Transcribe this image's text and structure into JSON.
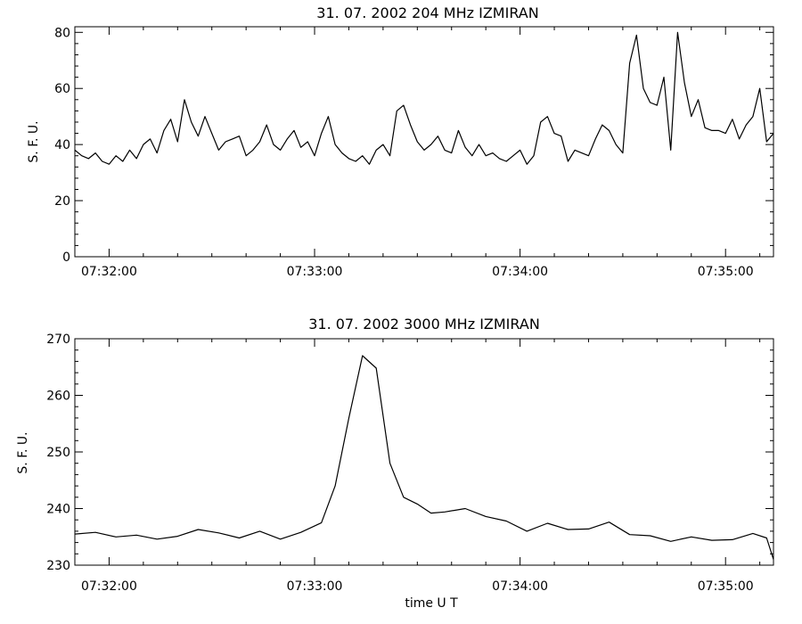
{
  "chart_data": [
    {
      "type": "line",
      "title": "31.  07.  2002    204 MHz     IZMIRAN",
      "xlabel": "",
      "ylabel": "S. F. U.",
      "xlim": [
        "07:31:50",
        "07:35:14"
      ],
      "ylim": [
        0,
        82
      ],
      "yticks": [
        0,
        20,
        40,
        60,
        80
      ],
      "xticks": [
        "07:32:00",
        "07:33:00",
        "07:34:00",
        "07:35:00"
      ],
      "series": [
        {
          "x": [
            "07:31:50",
            "07:31:52",
            "07:31:54",
            "07:31:56",
            "07:31:58",
            "07:32:00",
            "07:32:02",
            "07:32:04",
            "07:32:06",
            "07:32:08",
            "07:32:10",
            "07:32:12",
            "07:32:14",
            "07:32:16",
            "07:32:18",
            "07:32:20",
            "07:32:22",
            "07:32:24",
            "07:32:26",
            "07:32:28",
            "07:32:30",
            "07:32:32",
            "07:32:34",
            "07:32:36",
            "07:32:38",
            "07:32:40",
            "07:32:42",
            "07:32:44",
            "07:32:46",
            "07:32:48",
            "07:32:50",
            "07:32:52",
            "07:32:54",
            "07:32:56",
            "07:32:58",
            "07:33:00",
            "07:33:02",
            "07:33:04",
            "07:33:06",
            "07:33:08",
            "07:33:10",
            "07:33:12",
            "07:33:14",
            "07:33:16",
            "07:33:18",
            "07:33:20",
            "07:33:22",
            "07:33:24",
            "07:33:26",
            "07:33:28",
            "07:33:30",
            "07:33:32",
            "07:33:34",
            "07:33:36",
            "07:33:38",
            "07:33:40",
            "07:33:42",
            "07:33:44",
            "07:33:46",
            "07:33:48",
            "07:33:50",
            "07:33:52",
            "07:33:54",
            "07:33:56",
            "07:33:58",
            "07:34:00",
            "07:34:02",
            "07:34:04",
            "07:34:06",
            "07:34:08",
            "07:34:10",
            "07:34:12",
            "07:34:14",
            "07:34:16",
            "07:34:18",
            "07:34:20",
            "07:34:22",
            "07:34:24",
            "07:34:26",
            "07:34:28",
            "07:34:30",
            "07:34:32",
            "07:34:34",
            "07:34:36",
            "07:34:38",
            "07:34:40",
            "07:34:42",
            "07:34:44",
            "07:34:46",
            "07:34:48",
            "07:34:50",
            "07:34:52",
            "07:34:54",
            "07:34:56",
            "07:34:58",
            "07:35:00",
            "07:35:02",
            "07:35:04",
            "07:35:06",
            "07:35:08",
            "07:35:10",
            "07:35:12",
            "07:35:14"
          ],
          "y": [
            38,
            36,
            35,
            37,
            34,
            33,
            36,
            34,
            38,
            35,
            40,
            42,
            37,
            45,
            49,
            41,
            56,
            48,
            43,
            50,
            44,
            38,
            41,
            42,
            43,
            36,
            38,
            41,
            47,
            40,
            38,
            42,
            45,
            39,
            41,
            36,
            44,
            50,
            40,
            37,
            35,
            34,
            36,
            33,
            38,
            40,
            36,
            52,
            54,
            47,
            41,
            38,
            40,
            43,
            38,
            37,
            45,
            39,
            36,
            40,
            36,
            37,
            35,
            34,
            36,
            38,
            33,
            36,
            48,
            50,
            44,
            43,
            34,
            38,
            37,
            36,
            42,
            47,
            45,
            40,
            37,
            69,
            79,
            60,
            55,
            54,
            64,
            38,
            80,
            62,
            50,
            56,
            46,
            45,
            45,
            44,
            49,
            42,
            47,
            50,
            60,
            41,
            44
          ]
        }
      ]
    },
    {
      "type": "line",
      "title": "31.  07.  2002    3000 MHz     IZMIRAN",
      "xlabel": "time  U T",
      "ylabel": "S. F. U.",
      "xlim": [
        "07:31:50",
        "07:35:14"
      ],
      "ylim": [
        230,
        270
      ],
      "yticks": [
        230,
        240,
        250,
        260,
        270
      ],
      "xticks": [
        "07:32:00",
        "07:33:00",
        "07:34:00",
        "07:35:00"
      ],
      "series": [
        {
          "x": [
            "07:31:50",
            "07:31:56",
            "07:32:02",
            "07:32:08",
            "07:32:14",
            "07:32:20",
            "07:32:26",
            "07:32:32",
            "07:32:38",
            "07:32:44",
            "07:32:50",
            "07:32:56",
            "07:33:02",
            "07:33:06",
            "07:33:10",
            "07:33:14",
            "07:33:18",
            "07:33:22",
            "07:33:26",
            "07:33:30",
            "07:33:34",
            "07:33:38",
            "07:33:44",
            "07:33:50",
            "07:33:56",
            "07:34:02",
            "07:34:08",
            "07:34:14",
            "07:34:20",
            "07:34:26",
            "07:34:32",
            "07:34:38",
            "07:34:44",
            "07:34:50",
            "07:34:56",
            "07:35:02",
            "07:35:08",
            "07:35:12",
            "07:35:14"
          ],
          "y": [
            235.5,
            235.8,
            235.0,
            235.3,
            234.6,
            235.1,
            236.3,
            235.7,
            234.8,
            236.0,
            234.6,
            235.8,
            237.5,
            244,
            256,
            267,
            264.8,
            248,
            242,
            240.8,
            239.2,
            239.4,
            240.0,
            238.6,
            237.8,
            236.0,
            237.4,
            236.3,
            236.4,
            237.6,
            235.4,
            235.2,
            234.2,
            235.0,
            234.4,
            234.5,
            235.6,
            234.8,
            231
          ]
        }
      ]
    }
  ]
}
